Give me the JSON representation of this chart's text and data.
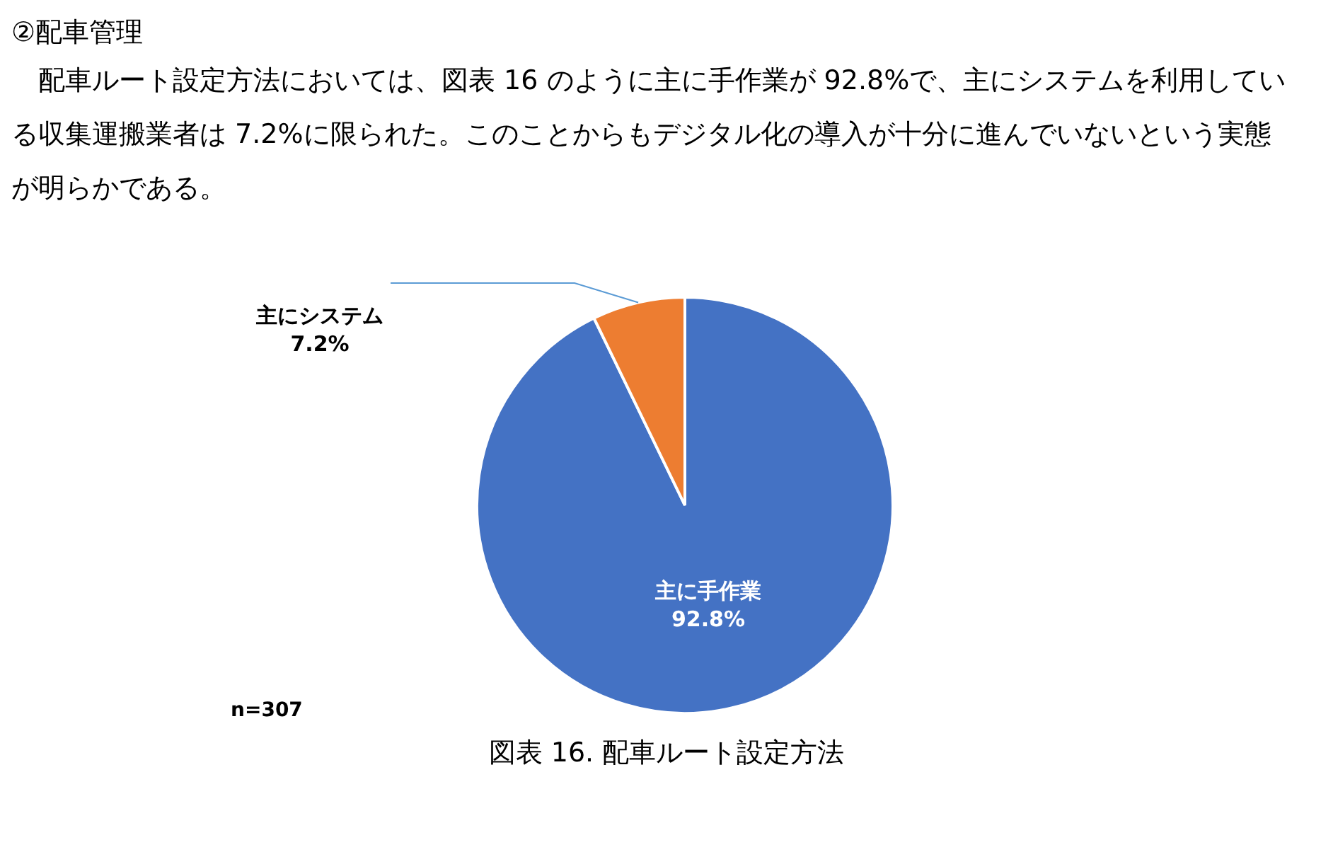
{
  "chart_data": {
    "type": "pie",
    "title": "②配車管理",
    "subtitle": "配車ルート設定方法においては、図表 16 のように主に手作業が 92.8%で、主にシステムを利用している収集運搬業者は 7.2%に限られた。このことからもデジタル化の導入が十分に進んでいないという実態が明らかである。",
    "categories": [
      "主に手作業",
      "主にシステム"
    ],
    "values": [
      92.8,
      7.2
    ],
    "colors": [
      "#4472c4",
      "#ed7d31"
    ],
    "value_labels": [
      "92.8%",
      "7.2%"
    ],
    "legend": false,
    "annotations": [
      "n=307",
      "図表 16. 配車ルート設定方法"
    ]
  }
}
